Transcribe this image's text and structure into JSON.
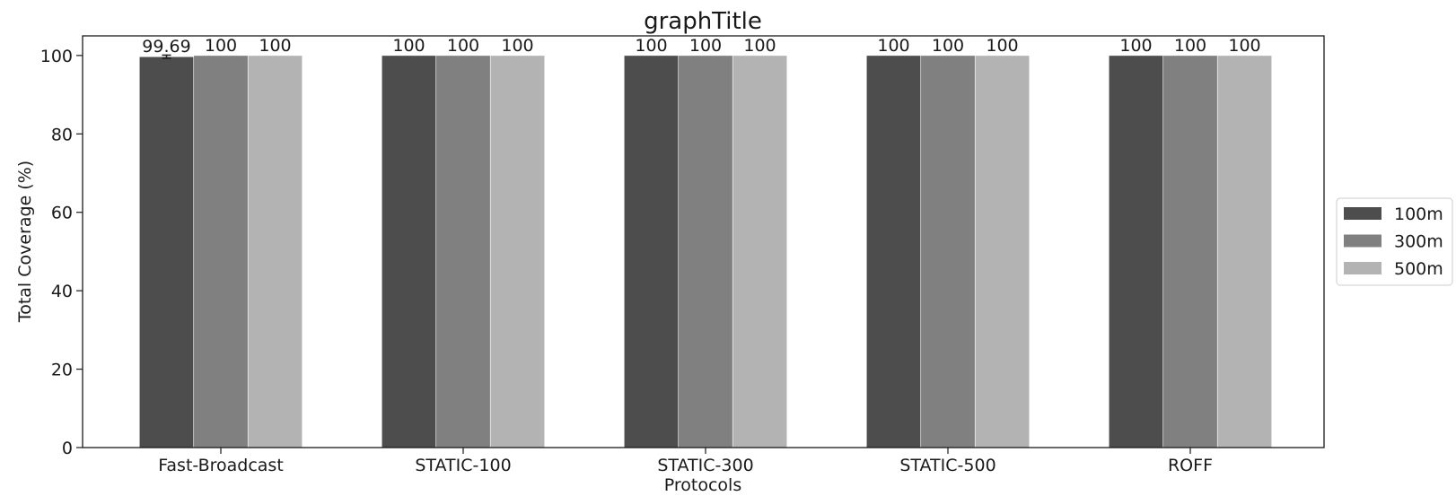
{
  "chart_data": {
    "type": "bar",
    "title": "graphTitle",
    "xlabel": "Protocols",
    "ylabel": "Total Coverage (%)",
    "categories": [
      "Fast-Broadcast",
      "STATIC-100",
      "STATIC-300",
      "STATIC-500",
      "ROFF"
    ],
    "series": [
      {
        "name": "100m",
        "values": [
          99.69,
          100,
          100,
          100,
          100
        ],
        "labels": [
          "99.69",
          "100",
          "100",
          "100",
          "100"
        ],
        "error": [
          0.4,
          0,
          0,
          0,
          0
        ],
        "color": "#4d4d4d"
      },
      {
        "name": "300m",
        "values": [
          100,
          100,
          100,
          100,
          100
        ],
        "labels": [
          "100",
          "100",
          "100",
          "100",
          "100"
        ],
        "error": [
          0,
          0,
          0,
          0,
          0
        ],
        "color": "#808080"
      },
      {
        "name": "500m",
        "values": [
          100,
          100,
          100,
          100,
          100
        ],
        "labels": [
          "100",
          "100",
          "100",
          "100",
          "100"
        ],
        "error": [
          0,
          0,
          0,
          0,
          0
        ],
        "color": "#b3b3b3"
      }
    ],
    "ylim": [
      0,
      105
    ],
    "yticks": [
      0,
      20,
      40,
      60,
      80,
      100
    ],
    "grid": false,
    "legend_position": "right"
  }
}
